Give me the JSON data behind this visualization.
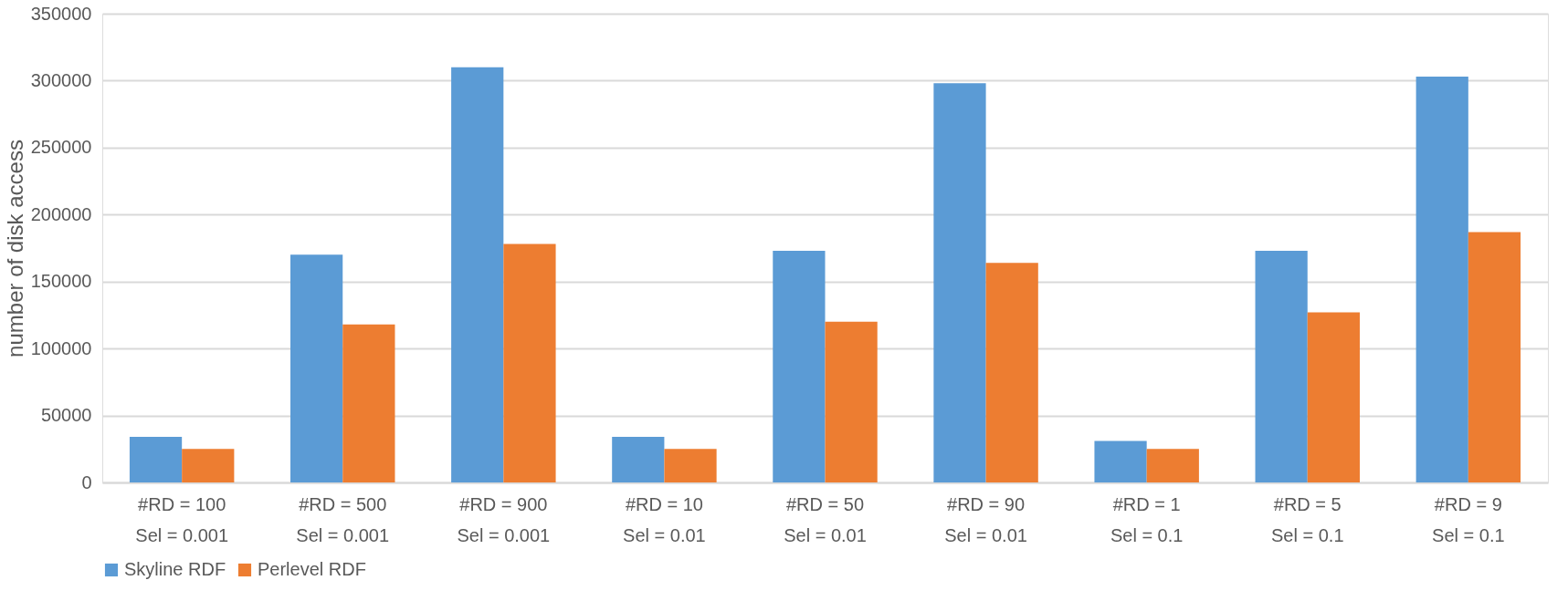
{
  "chart_data": {
    "type": "bar",
    "ylabel": "number of disk access",
    "categories": [
      "#RD = 100\nSel =  0.001",
      "#RD = 500\nSel =  0.001",
      "#RD = 900\nSel =  0.001",
      "#RD = 10\nSel =  0.01",
      "#RD = 50\nSel =  0.01",
      "#RD = 90\nSel =  0.01",
      "#RD = 1\nSel =  0.1",
      "#RD = 5\nSel =  0.1",
      "#RD = 9\nSel =  0.1"
    ],
    "series": [
      {
        "name": "Skyline RDF",
        "color": "#5b9bd5",
        "values": [
          34000,
          170000,
          310000,
          34000,
          173000,
          298000,
          31000,
          173000,
          303000
        ]
      },
      {
        "name": "Perlevel RDF",
        "color": "#ed7d31",
        "values": [
          25000,
          118000,
          178000,
          25000,
          120000,
          164000,
          25000,
          127000,
          187000
        ]
      }
    ],
    "ylim": [
      0,
      350000
    ],
    "yticks": [
      0,
      50000,
      100000,
      150000,
      200000,
      250000,
      300000,
      350000
    ],
    "grid": "y",
    "legend": "bottom"
  }
}
